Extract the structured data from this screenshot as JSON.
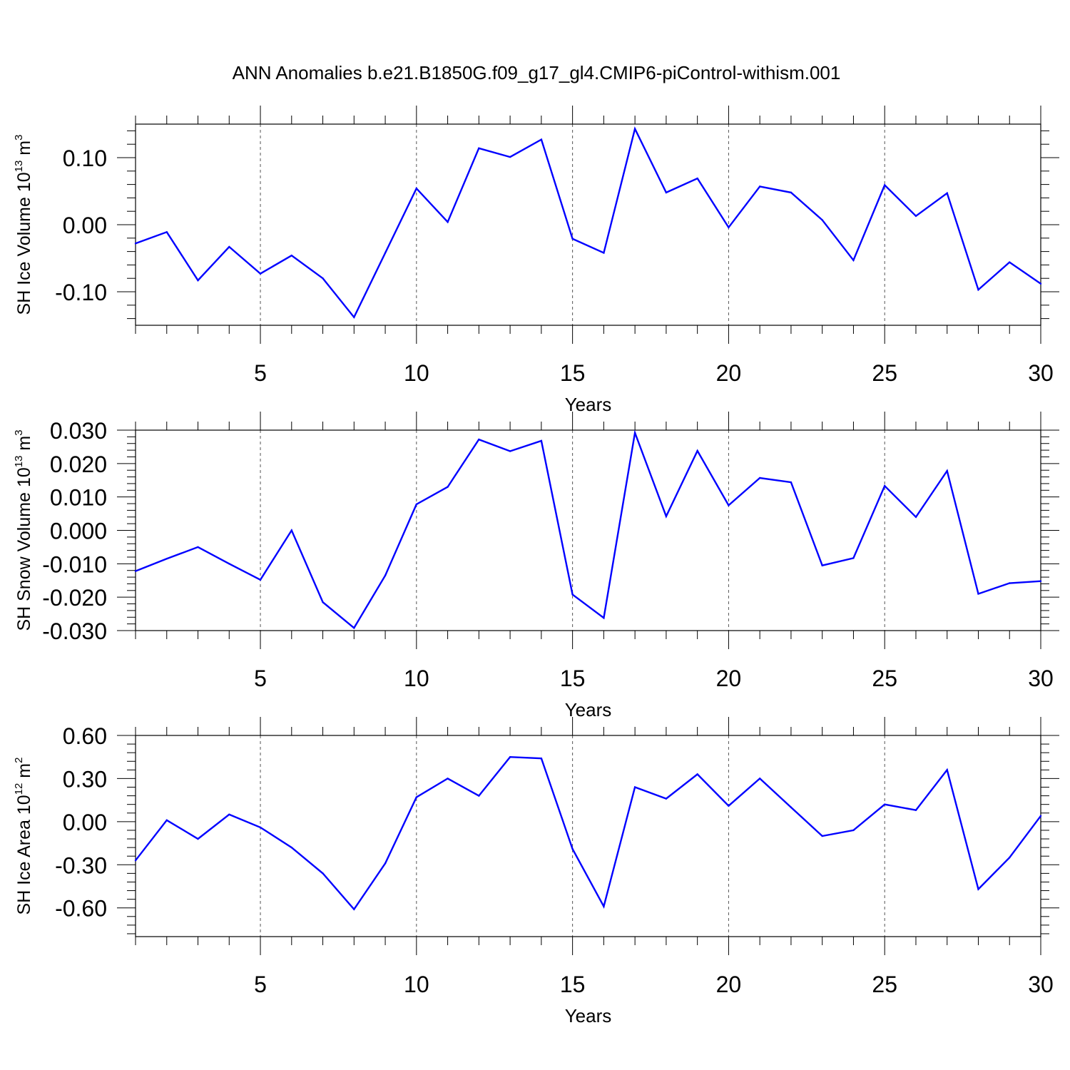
{
  "title": "ANN Anomalies b.e21.B1850G.f09_g17_gl4.CMIP6-piControl-withism.001",
  "colors": {
    "line": "#0000ff",
    "axes": "#000000",
    "grid": "#555555"
  },
  "chart_data": [
    {
      "type": "line",
      "xlabel": "Years",
      "ylabel": {
        "text": "SH Ice Volume 10",
        "exp": "13",
        "unit_tail": " m",
        "unit_exp": "3"
      },
      "x": [
        1,
        2,
        3,
        4,
        5,
        6,
        7,
        8,
        9,
        10,
        11,
        12,
        13,
        14,
        15,
        16,
        17,
        18,
        19,
        20,
        21,
        22,
        23,
        24,
        25,
        26,
        27,
        28,
        29,
        30
      ],
      "values": [
        -0.028,
        -0.011,
        -0.083,
        -0.033,
        -0.073,
        -0.046,
        -0.08,
        -0.138,
        -0.042,
        0.054,
        0.004,
        0.114,
        0.101,
        0.127,
        -0.021,
        -0.042,
        0.143,
        0.048,
        0.069,
        -0.004,
        0.057,
        0.048,
        0.007,
        -0.053,
        0.059,
        0.013,
        0.047,
        -0.097,
        -0.056,
        -0.088
      ],
      "xlim": [
        1,
        30
      ],
      "ylim": [
        -0.15,
        0.15
      ],
      "x_ticks": [
        5,
        10,
        15,
        20,
        25,
        30
      ],
      "x_tick_labels": [
        "5",
        "10",
        "15",
        "20",
        "25",
        "30"
      ],
      "y_ticks": [
        -0.1,
        0.0,
        0.1
      ],
      "y_tick_labels": [
        "-0.10",
        "0.00",
        "0.10"
      ],
      "grid": "vertical dashed at labeled x ticks"
    },
    {
      "type": "line",
      "xlabel": "Years",
      "ylabel": {
        "text": "SH Snow Volume 10",
        "exp": "13",
        "unit_tail": " m",
        "unit_exp": "3"
      },
      "x": [
        1,
        2,
        3,
        4,
        5,
        6,
        7,
        8,
        9,
        10,
        11,
        12,
        13,
        14,
        15,
        16,
        17,
        18,
        19,
        20,
        21,
        22,
        23,
        24,
        25,
        26,
        27,
        28,
        29,
        30
      ],
      "values": [
        -0.0122,
        -0.0085,
        -0.005,
        -0.01,
        -0.0148,
        0.0,
        -0.0215,
        -0.0292,
        -0.0135,
        0.0078,
        0.013,
        0.0272,
        0.0237,
        0.0268,
        -0.0192,
        -0.0262,
        0.0292,
        0.0042,
        0.0238,
        0.0075,
        0.0157,
        0.0144,
        -0.0105,
        -0.0083,
        0.0133,
        0.004,
        0.0178,
        -0.019,
        -0.0158,
        -0.0152
      ],
      "xlim": [
        1,
        30
      ],
      "ylim": [
        -0.03,
        0.03
      ],
      "x_ticks": [
        5,
        10,
        15,
        20,
        25,
        30
      ],
      "x_tick_labels": [
        "5",
        "10",
        "15",
        "20",
        "25",
        "30"
      ],
      "y_ticks": [
        -0.03,
        -0.02,
        -0.01,
        0.0,
        0.01,
        0.02,
        0.03
      ],
      "y_tick_labels": [
        "-0.030",
        "-0.020",
        "-0.010",
        "0.000",
        "0.010",
        "0.020",
        "0.030"
      ],
      "grid": "vertical dashed at labeled x ticks"
    },
    {
      "type": "line",
      "xlabel": "Years",
      "ylabel": {
        "text": "SH Ice Area 10",
        "exp": "12",
        "unit_tail": " m",
        "unit_exp": "2"
      },
      "x": [
        1,
        2,
        3,
        4,
        5,
        6,
        7,
        8,
        9,
        10,
        11,
        12,
        13,
        14,
        15,
        16,
        17,
        18,
        19,
        20,
        21,
        22,
        23,
        24,
        25,
        26,
        27,
        28,
        29,
        30
      ],
      "values": [
        -0.27,
        0.01,
        -0.12,
        0.05,
        -0.04,
        -0.18,
        -0.36,
        -0.61,
        -0.29,
        0.17,
        0.3,
        0.18,
        0.45,
        0.44,
        -0.19,
        -0.59,
        0.24,
        0.16,
        0.33,
        0.11,
        0.3,
        0.1,
        -0.1,
        -0.06,
        0.12,
        0.08,
        0.36,
        -0.47,
        -0.25,
        0.04
      ],
      "xlim": [
        1,
        30
      ],
      "ylim": [
        -0.8,
        0.6
      ],
      "x_ticks": [
        5,
        10,
        15,
        20,
        25,
        30
      ],
      "x_tick_labels": [
        "5",
        "10",
        "15",
        "20",
        "25",
        "30"
      ],
      "y_ticks": [
        -0.6,
        -0.3,
        0.0,
        0.3,
        0.6
      ],
      "y_tick_labels": [
        "-0.60",
        "-0.30",
        "0.00",
        "0.30",
        "0.60"
      ],
      "grid": "vertical dashed at labeled x ticks"
    }
  ]
}
